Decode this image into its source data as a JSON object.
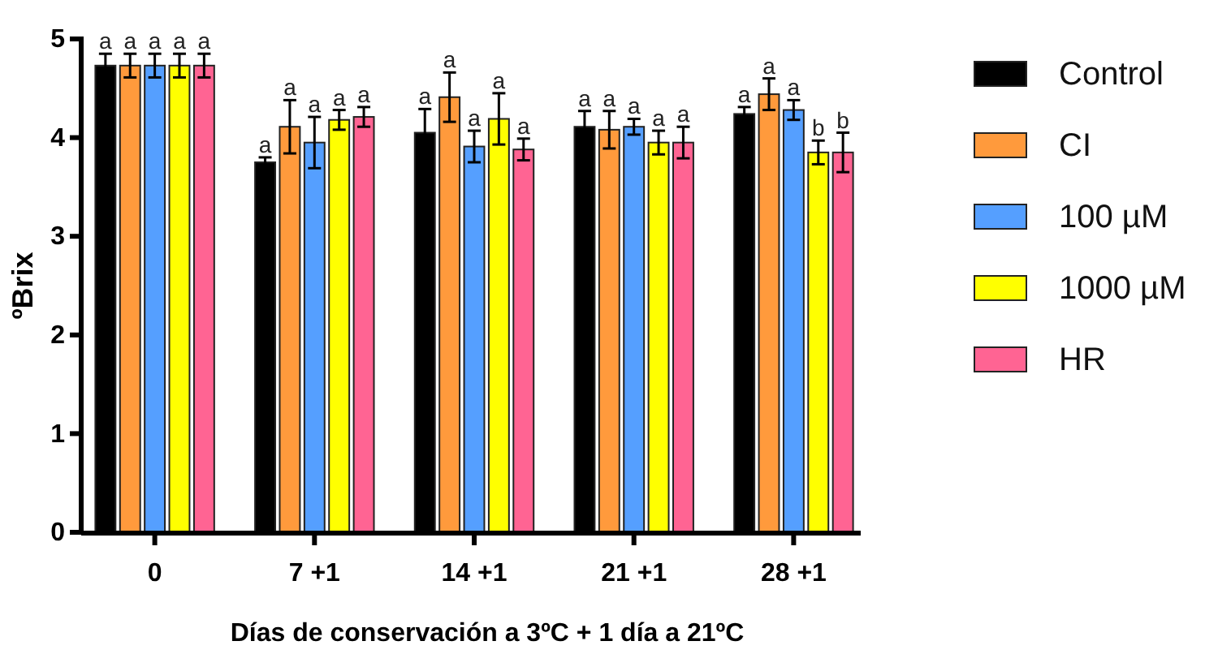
{
  "chart_data": {
    "type": "bar",
    "xlabel": "Días de conservación a 3ºC + 1 día a 21ºC",
    "ylabel": "ºBrix",
    "categories": [
      "0",
      "7 +1",
      "14 +1",
      "21 +1",
      "28 +1"
    ],
    "ylim": [
      0,
      5
    ],
    "yticks": [
      0,
      1,
      2,
      3,
      4,
      5
    ],
    "grid": false,
    "legend": "right",
    "series": [
      {
        "name": "Control",
        "color": "#000000",
        "values": [
          4.73,
          3.75,
          4.05,
          4.11,
          4.24
        ],
        "errors": [
          0.12,
          0.05,
          0.24,
          0.16,
          0.07
        ],
        "value_labels": [
          "a",
          "a",
          "a",
          "a",
          "a"
        ]
      },
      {
        "name": "CI",
        "color": "#ff9a3c",
        "values": [
          4.73,
          4.11,
          4.41,
          4.08,
          4.44
        ],
        "errors": [
          0.12,
          0.27,
          0.25,
          0.19,
          0.16
        ],
        "value_labels": [
          "a",
          "a",
          "a",
          "a",
          "a"
        ]
      },
      {
        "name": "100 µM",
        "color": "#559fff",
        "values": [
          4.73,
          3.95,
          3.91,
          4.11,
          4.28
        ],
        "errors": [
          0.12,
          0.26,
          0.16,
          0.08,
          0.1
        ],
        "value_labels": [
          "a",
          "a",
          "a",
          "a",
          "a"
        ]
      },
      {
        "name": "1000 µM",
        "color": "#ffff00",
        "values": [
          4.73,
          4.18,
          4.19,
          3.95,
          3.85
        ],
        "errors": [
          0.12,
          0.1,
          0.26,
          0.12,
          0.12
        ],
        "value_labels": [
          "a",
          "a",
          "a",
          "a",
          "b"
        ]
      },
      {
        "name": "HR",
        "color": "#ff6493",
        "values": [
          4.73,
          4.21,
          3.88,
          3.95,
          3.85
        ],
        "errors": [
          0.12,
          0.1,
          0.11,
          0.16,
          0.2
        ],
        "value_labels": [
          "a",
          "a",
          "a",
          "a",
          "b"
        ]
      }
    ]
  }
}
